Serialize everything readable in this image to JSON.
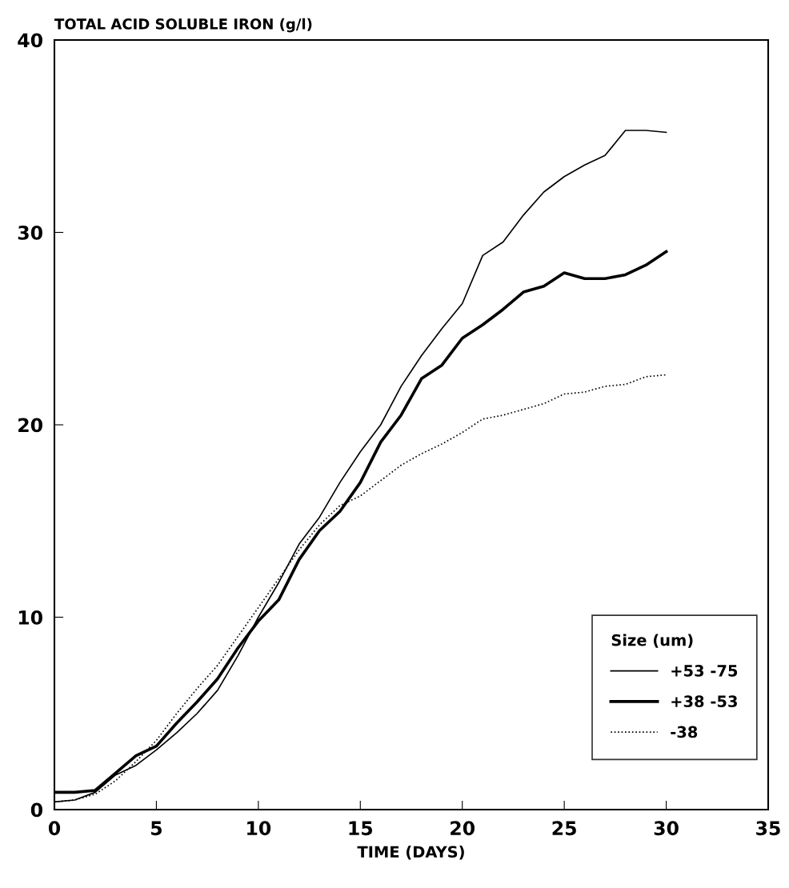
{
  "chart_data": {
    "type": "line",
    "ylabel": "TOTAL ACID SOLUBLE IRON (g/l)",
    "xlabel": "TIME (DAYS)",
    "legend_title": "Size (um)",
    "x": [
      0,
      1,
      2,
      3,
      4,
      5,
      6,
      7,
      8,
      9,
      10,
      11,
      12,
      13,
      14,
      15,
      16,
      17,
      18,
      19,
      20,
      21,
      22,
      23,
      24,
      25,
      26,
      27,
      28,
      29,
      30
    ],
    "series": [
      {
        "name": "+53 -75",
        "color": "#000000",
        "line_style": "solid",
        "values": [
          0.4,
          0.5,
          0.9,
          1.8,
          2.3,
          3.1,
          4.0,
          5.0,
          6.2,
          8.0,
          10.0,
          11.8,
          13.8,
          15.2,
          17.0,
          18.6,
          20.0,
          22.0,
          23.6,
          25.0,
          26.3,
          28.8,
          29.5,
          30.9,
          32.1,
          32.9,
          33.5,
          34.0,
          35.3,
          35.3,
          35.2
        ]
      },
      {
        "name": "+38 -53",
        "color": "#000000",
        "line_style": "solid",
        "values": [
          0.9,
          0.9,
          1.0,
          1.9,
          2.8,
          3.3,
          4.5,
          5.6,
          6.8,
          8.4,
          9.8,
          10.9,
          13.0,
          14.5,
          15.5,
          17.0,
          19.1,
          20.5,
          22.4,
          23.1,
          24.5,
          25.2,
          26.0,
          26.9,
          27.2,
          27.9,
          27.6,
          27.6,
          27.8,
          28.3,
          29.0
        ]
      },
      {
        "name": "-38",
        "color": "#000000",
        "line_style": "dotted",
        "values": [
          0.4,
          0.5,
          0.8,
          1.5,
          2.5,
          3.6,
          5.0,
          6.3,
          7.5,
          9.0,
          10.5,
          12.0,
          13.5,
          14.8,
          15.8,
          16.3,
          17.1,
          17.9,
          18.5,
          19.0,
          19.6,
          20.3,
          20.5,
          20.8,
          21.1,
          21.6,
          21.7,
          22.0,
          22.1,
          22.5,
          22.6
        ]
      }
    ],
    "xlim": [
      0,
      35
    ],
    "ylim": [
      0,
      40
    ],
    "xticks": [
      0,
      5,
      10,
      15,
      20,
      25,
      30,
      35
    ],
    "yticks": [
      0,
      10,
      20,
      30,
      40
    ],
    "grid": false,
    "legend": "bottom right",
    "marker": "none"
  }
}
